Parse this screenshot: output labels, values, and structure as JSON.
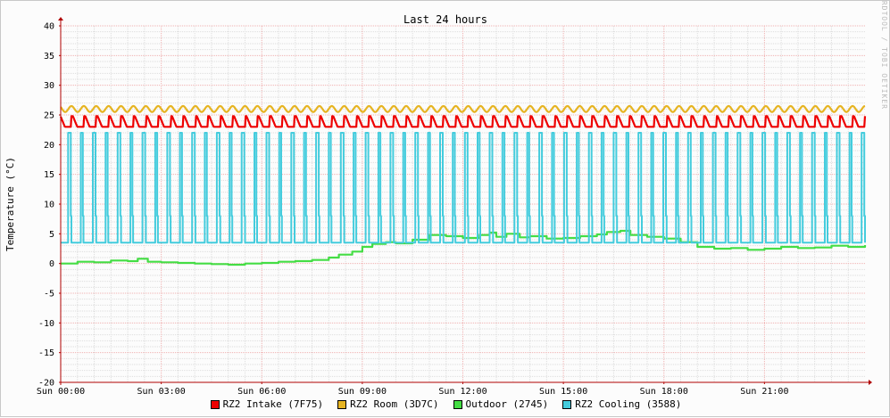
{
  "chart_data": {
    "type": "line",
    "title": "Last 24 hours",
    "ylabel": "Temperature (°C)",
    "watermark": "RRDTOOL / TOBI OETIKER",
    "ylim": [
      -20,
      40
    ],
    "y_ticks": [
      -20,
      -15,
      -10,
      -5,
      0,
      5,
      10,
      15,
      20,
      25,
      30,
      35,
      40
    ],
    "x_range_hours": [
      0,
      24
    ],
    "x_ticks": [
      {
        "hour": 0,
        "label": "Sun 00:00"
      },
      {
        "hour": 3,
        "label": "Sun 03:00"
      },
      {
        "hour": 6,
        "label": "Sun 06:00"
      },
      {
        "hour": 9,
        "label": "Sun 09:00"
      },
      {
        "hour": 12,
        "label": "Sun 12:00"
      },
      {
        "hour": 15,
        "label": "Sun 15:00"
      },
      {
        "hour": 18,
        "label": "Sun 18:00"
      },
      {
        "hour": 21,
        "label": "Sun 21:00"
      }
    ],
    "grid": true,
    "legend_position": "bottom-center",
    "series": [
      {
        "name": "RZ2 Intake (7F75)",
        "color": "#ee0000",
        "pattern": "sawtooth",
        "cycle_hours": 0.37,
        "min": 23.0,
        "max": 24.8
      },
      {
        "name": "RZ2 Room (3D7C)",
        "color": "#e6b422",
        "pattern": "wave",
        "cycle_hours": 0.37,
        "min": 25.5,
        "max": 26.5
      },
      {
        "name": "Outdoor (2745)",
        "color": "#44dd44",
        "pattern": "trend",
        "points": [
          [
            0,
            0.0
          ],
          [
            0.5,
            0.3
          ],
          [
            1,
            0.2
          ],
          [
            1.5,
            0.5
          ],
          [
            2,
            0.4
          ],
          [
            2.3,
            0.8
          ],
          [
            2.6,
            0.3
          ],
          [
            3,
            0.2
          ],
          [
            3.5,
            0.1
          ],
          [
            4,
            0.0
          ],
          [
            4.5,
            -0.1
          ],
          [
            5,
            -0.2
          ],
          [
            5.5,
            0.0
          ],
          [
            6,
            0.1
          ],
          [
            6.5,
            0.3
          ],
          [
            7,
            0.4
          ],
          [
            7.5,
            0.6
          ],
          [
            8,
            1.0
          ],
          [
            8.3,
            1.5
          ],
          [
            8.7,
            2.0
          ],
          [
            9,
            2.8
          ],
          [
            9.3,
            3.3
          ],
          [
            9.7,
            3.6
          ],
          [
            10,
            3.4
          ],
          [
            10.5,
            4.0
          ],
          [
            11,
            4.8
          ],
          [
            11.5,
            4.6
          ],
          [
            12,
            4.3
          ],
          [
            12.5,
            4.8
          ],
          [
            12.8,
            5.2
          ],
          [
            13,
            4.5
          ],
          [
            13.3,
            5.0
          ],
          [
            13.7,
            4.4
          ],
          [
            14,
            4.6
          ],
          [
            14.5,
            4.2
          ],
          [
            15,
            4.3
          ],
          [
            15.5,
            4.6
          ],
          [
            16,
            4.9
          ],
          [
            16.3,
            5.3
          ],
          [
            16.7,
            5.5
          ],
          [
            17,
            4.8
          ],
          [
            17.5,
            4.5
          ],
          [
            18,
            4.2
          ],
          [
            18.5,
            3.6
          ],
          [
            19,
            2.8
          ],
          [
            19.5,
            2.5
          ],
          [
            20,
            2.6
          ],
          [
            20.5,
            2.3
          ],
          [
            21,
            2.5
          ],
          [
            21.5,
            2.8
          ],
          [
            22,
            2.6
          ],
          [
            22.5,
            2.7
          ],
          [
            23,
            3.0
          ],
          [
            23.5,
            2.8
          ],
          [
            24,
            3.1
          ]
        ]
      },
      {
        "name": "RZ2 Cooling (3588)",
        "color": "#44ccdd",
        "pattern": "pulse",
        "cycle_hours": 0.37,
        "base": 3.5,
        "peak": 22.0
      }
    ]
  }
}
